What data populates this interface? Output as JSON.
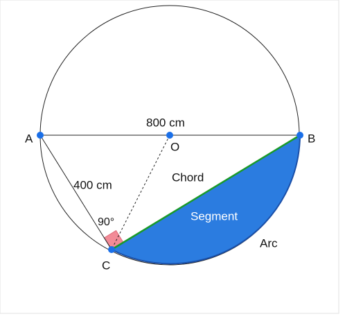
{
  "points": {
    "A": "A",
    "B": "B",
    "C": "C",
    "O": "O"
  },
  "labels": {
    "diameter": "800 cm",
    "side": "400 cm",
    "angle": "90°",
    "chord": "Chord",
    "segment": "Segment",
    "arc": "Arc"
  }
}
